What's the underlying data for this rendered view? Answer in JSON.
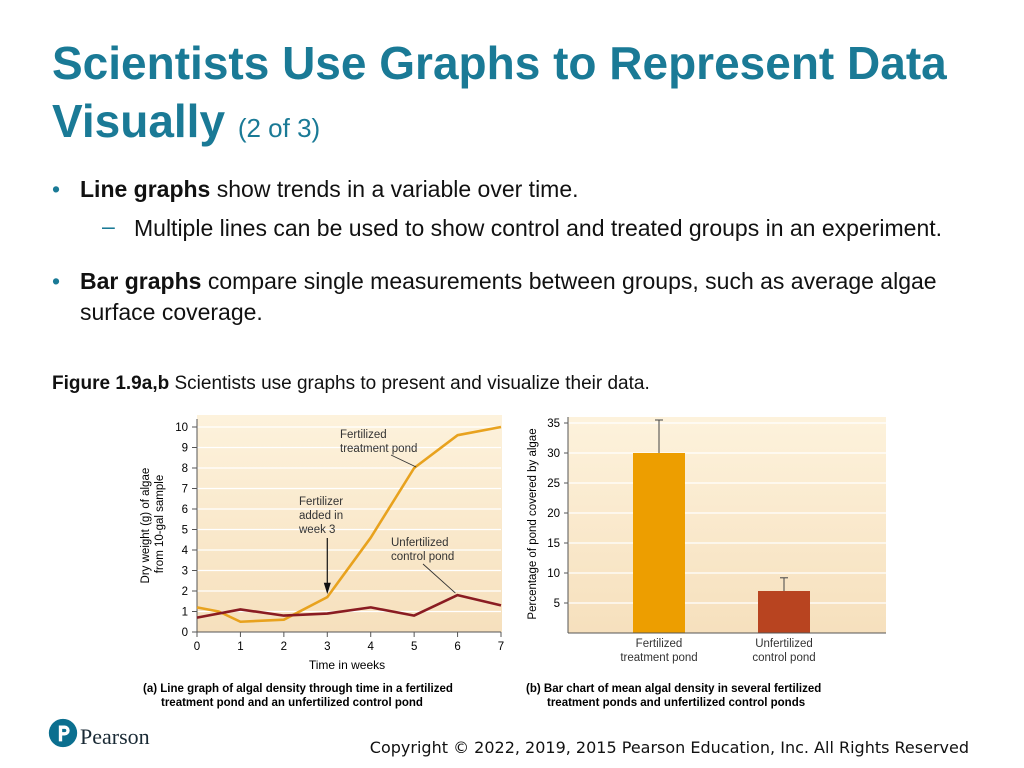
{
  "title": {
    "main": "Scientists Use Graphs to Represent Data Visually",
    "suffix": "(2 of 3)"
  },
  "bullets": [
    {
      "bold": "Line graphs",
      "text": " show trends in a variable over time.",
      "sub": "Multiple lines can be used to show control and treated groups in an experiment."
    },
    {
      "bold": "Bar graphs",
      "text": " compare single measurements between groups, such as average algae surface coverage."
    }
  ],
  "figure_caption": {
    "label": "Figure 1.9a,b",
    "text": " Scientists use graphs to present and visualize their data."
  },
  "chart_data": [
    {
      "type": "line",
      "xlabel": "Time in weeks",
      "ylabel_lines": [
        "Dry weight (g) of algae",
        "from 10-gal sample"
      ],
      "xlim": [
        0,
        7
      ],
      "ylim": [
        0,
        10
      ],
      "x_ticks": [
        0,
        1,
        2,
        3,
        4,
        5,
        6,
        7
      ],
      "y_ticks": [
        0,
        1,
        2,
        3,
        4,
        5,
        6,
        7,
        8,
        9,
        10
      ],
      "series": [
        {
          "label_lines": [
            "Fertilized",
            "treatment pond"
          ],
          "color": "#e8a21e",
          "x": [
            0,
            0.5,
            1,
            2,
            3,
            4,
            5,
            6,
            7
          ],
          "y": [
            1.2,
            1.0,
            0.5,
            0.6,
            1.7,
            4.6,
            8.0,
            9.6,
            10.0
          ]
        },
        {
          "label_lines": [
            "Unfertilized",
            "control pond"
          ],
          "color": "#8a1c22",
          "x": [
            0,
            1,
            2,
            3,
            4,
            5,
            6,
            7
          ],
          "y": [
            0.7,
            1.1,
            0.8,
            0.9,
            1.2,
            0.8,
            1.8,
            1.3
          ]
        }
      ],
      "annotation": {
        "lines": [
          "Fertilizer",
          "added in",
          "week 3"
        ],
        "x": 3
      },
      "caption_label": "(a)",
      "caption_lines": [
        "Line graph of algal density through time in a fertilized",
        "treatment pond and an unfertilized control pond"
      ]
    },
    {
      "type": "bar",
      "ylabel": "Percentage of pond covered by algae",
      "ylim": [
        0,
        36
      ],
      "y_ticks": [
        5,
        10,
        15,
        20,
        25,
        30,
        35
      ],
      "categories": [
        {
          "label_lines": [
            "Fertilized",
            "treatment pond"
          ],
          "value": 30,
          "error_top": 35.5,
          "color": "#ed9e00"
        },
        {
          "label_lines": [
            "Unfertilized",
            "control pond"
          ],
          "value": 7,
          "error_top": 9.2,
          "color": "#b84420"
        }
      ],
      "caption_label": "(b)",
      "caption_lines": [
        "Bar chart of mean algal density in several fertilized",
        "treatment ponds and unfertilized control ponds"
      ]
    }
  ],
  "branding": {
    "logo_text": "Pearson"
  },
  "copyright": "Copyright © 2022, 2019, 2015 Pearson Education, Inc. All Rights Reserved"
}
